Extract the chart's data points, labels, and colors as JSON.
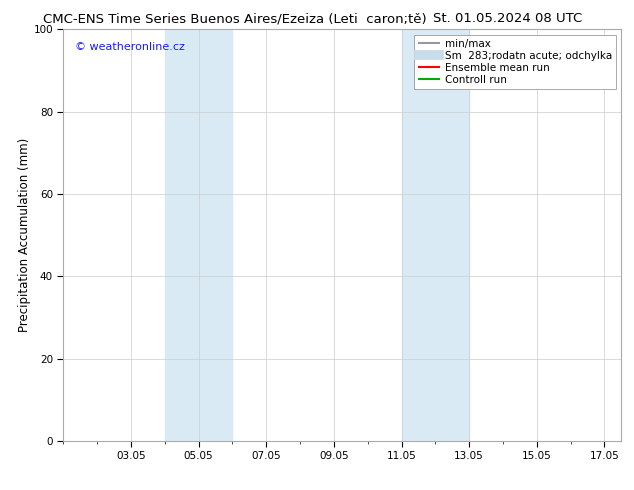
{
  "title_left": "CMC-ENS Time Series Buenos Aires/Ezeiza (Leti  caron;tě)",
  "title_right": "St. 01.05.2024 08 UTC",
  "ylabel": "Precipitation Accumulation (mm)",
  "ylim": [
    0,
    100
  ],
  "yticks": [
    0,
    20,
    40,
    60,
    80,
    100
  ],
  "xlim": [
    1.0,
    17.5
  ],
  "xtick_labels": [
    "03.05",
    "05.05",
    "07.05",
    "09.05",
    "11.05",
    "13.05",
    "15.05",
    "17.05"
  ],
  "xtick_positions": [
    3,
    5,
    7,
    9,
    11,
    13,
    15,
    17
  ],
  "shaded_bands": [
    {
      "x_start": 4.0,
      "x_end": 5.0
    },
    {
      "x_start": 5.0,
      "x_end": 6.0
    },
    {
      "x_start": 11.0,
      "x_end": 12.0
    },
    {
      "x_start": 12.0,
      "x_end": 13.0
    }
  ],
  "band_color": "#daeaf5",
  "background_color": "#ffffff",
  "plot_bg_color": "#ffffff",
  "watermark_text": "© weatheronline.cz",
  "watermark_color": "#1a1aff",
  "legend_entries": [
    {
      "label": "min/max",
      "color": "#999999",
      "lw": 1.5,
      "type": "line"
    },
    {
      "label": "Sm  283;rodatn acute; odchylka",
      "color": "#c8dcea",
      "lw": 7,
      "type": "line"
    },
    {
      "label": "Ensemble mean run",
      "color": "#ff0000",
      "lw": 1.5,
      "type": "line"
    },
    {
      "label": "Controll run",
      "color": "#00aa00",
      "lw": 1.5,
      "type": "line"
    }
  ],
  "title_fontsize": 9.5,
  "tick_fontsize": 7.5,
  "ylabel_fontsize": 8.5,
  "legend_fontsize": 7.5,
  "grid_color": "#cccccc",
  "border_color": "#aaaaaa"
}
